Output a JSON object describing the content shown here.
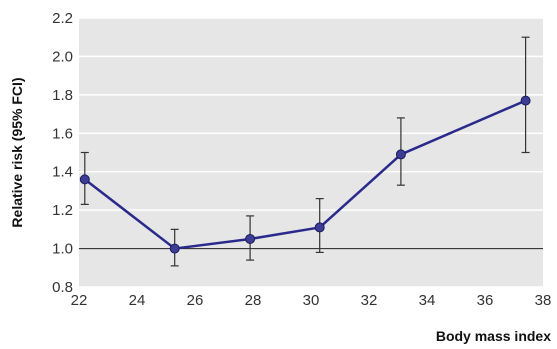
{
  "chart_data": {
    "type": "line",
    "title": "",
    "xlabel": "Body mass index",
    "ylabel": "Relative risk (95% FCI)",
    "xlim": [
      22,
      38
    ],
    "ylim": [
      0.8,
      2.2
    ],
    "xticks": [
      22,
      24,
      26,
      28,
      30,
      32,
      34,
      36,
      38
    ],
    "yticks": [
      0.8,
      1.0,
      1.2,
      1.4,
      1.6,
      1.8,
      2.0,
      2.2
    ],
    "ytick_labels": [
      "0.8",
      "1.0",
      "1.2",
      "1.4",
      "1.6",
      "1.8",
      "2.0",
      "2.2"
    ],
    "grid": true,
    "reference_line": 1.0,
    "series": [
      {
        "x": [
          22.2,
          25.3,
          27.9,
          30.3,
          33.1,
          37.4
        ],
        "y": [
          1.36,
          1.0,
          1.05,
          1.11,
          1.49,
          1.77
        ],
        "ci_low": [
          1.23,
          0.91,
          0.94,
          0.98,
          1.33,
          1.5
        ],
        "ci_high": [
          1.5,
          1.1,
          1.17,
          1.26,
          1.68,
          2.1
        ]
      }
    ],
    "colors": {
      "plot_background": "#e6e6e6",
      "grid": "#ffffff",
      "line": "#2a2a8c",
      "marker": "#3d3d96",
      "error_bar": "#333333",
      "reference_line": "#222222"
    }
  }
}
